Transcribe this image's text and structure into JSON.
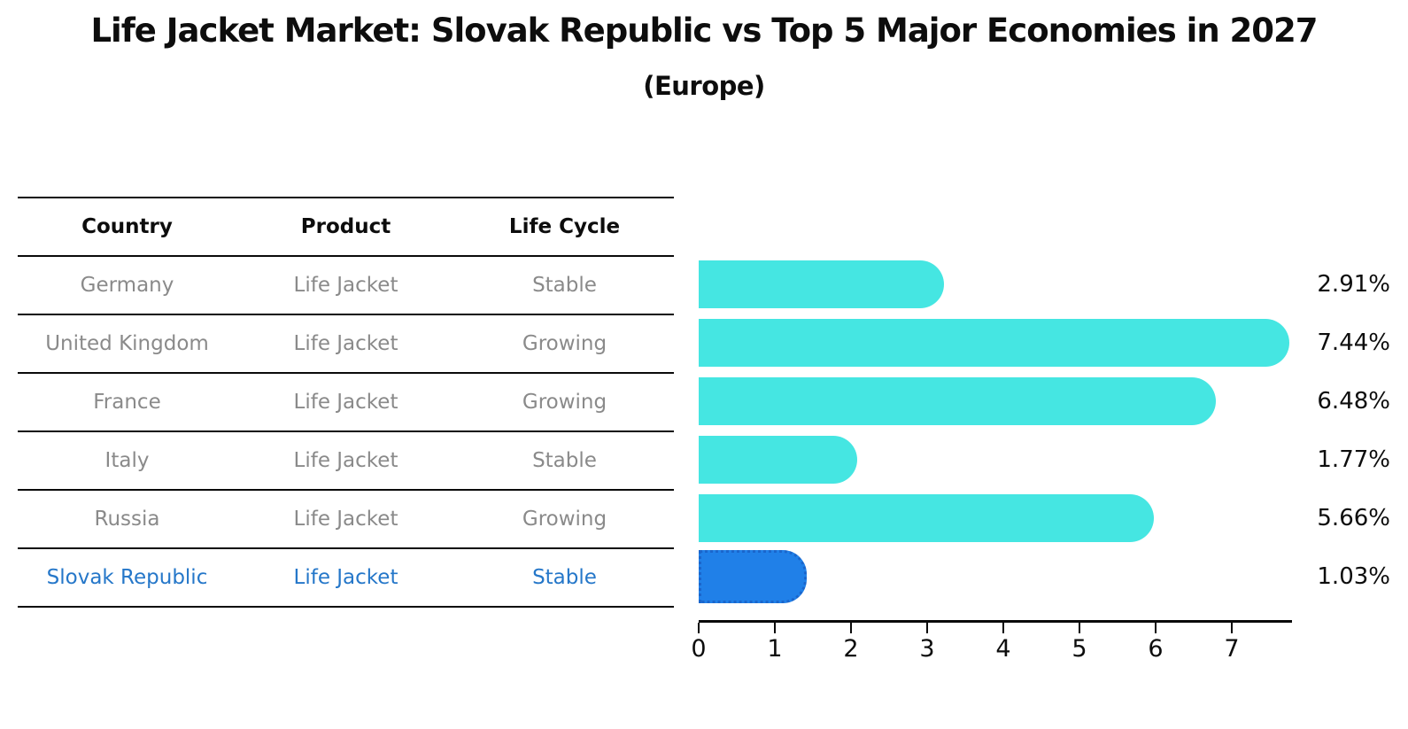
{
  "title": "Life Jacket Market: Slovak Republic vs Top 5 Major Economies in 2027",
  "subtitle": "(Europe)",
  "table": {
    "headers": [
      "Country",
      "Product",
      "Life Cycle"
    ],
    "rows": [
      {
        "country": "Germany",
        "product": "Life Jacket",
        "life_cycle": "Stable",
        "highlight": false
      },
      {
        "country": "United Kingdom",
        "product": "Life Jacket",
        "life_cycle": "Growing",
        "highlight": false
      },
      {
        "country": "France",
        "product": "Life Jacket",
        "life_cycle": "Growing",
        "highlight": false
      },
      {
        "country": "Italy",
        "product": "Life Jacket",
        "life_cycle": "Stable",
        "highlight": false
      },
      {
        "country": "Russia",
        "product": "Life Jacket",
        "life_cycle": "Growing",
        "highlight": false
      },
      {
        "country": "Slovak Republic",
        "product": "Life Jacket",
        "life_cycle": "Stable",
        "highlight": true
      }
    ]
  },
  "chart_data": {
    "type": "bar",
    "orientation": "horizontal",
    "title": "Life Jacket Market: Slovak Republic vs Top 5 Major Economies in 2027",
    "subtitle": "(Europe)",
    "categories": [
      "Germany",
      "United Kingdom",
      "France",
      "Italy",
      "Russia",
      "Slovak Republic"
    ],
    "values": [
      2.91,
      7.44,
      6.48,
      1.77,
      5.66,
      1.03
    ],
    "value_labels": [
      "2.91%",
      "7.44%",
      "6.48%",
      "1.77%",
      "5.66%",
      "1.03%"
    ],
    "x_ticks": [
      "0",
      "1",
      "2",
      "3",
      "4",
      "5",
      "6",
      "7"
    ],
    "xlim": [
      0,
      7.8
    ],
    "grid": false,
    "legend": "none",
    "highlight_index": 5,
    "colors": {
      "bar": "#45e6e2",
      "highlight_bar": "#2080e8",
      "highlight_border": "#1a66cc",
      "highlight_text": "#2577c9",
      "text": "#0d0d0d",
      "muted_text": "#8a8a8a"
    }
  }
}
